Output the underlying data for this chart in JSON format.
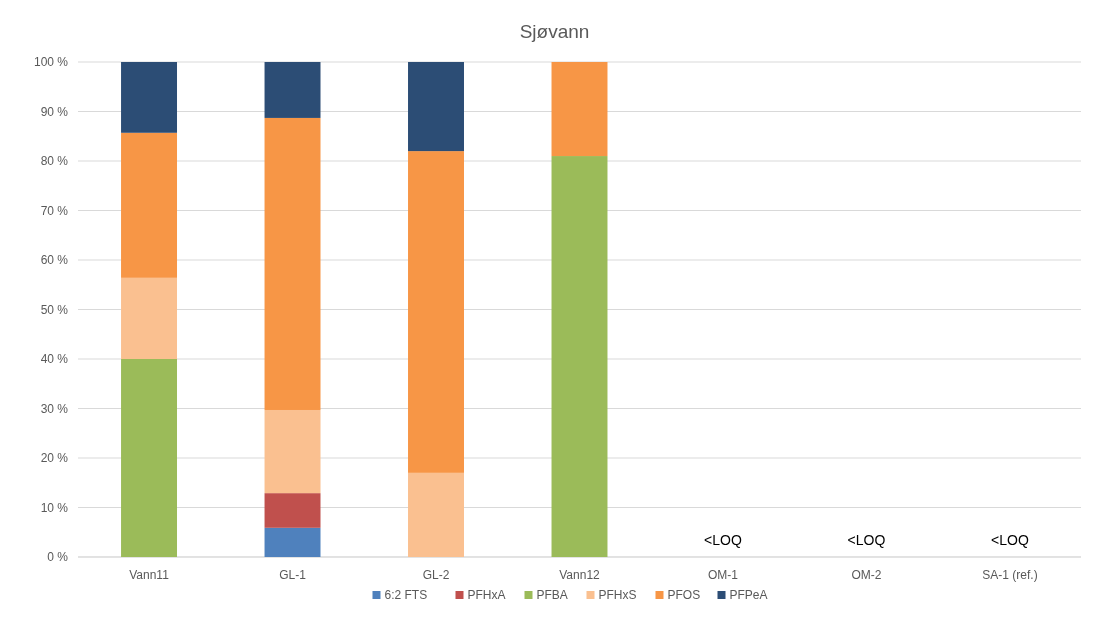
{
  "chart_data": {
    "type": "bar",
    "title": "Sjøvann",
    "stacked": true,
    "categories": [
      "Vann11",
      "GL-1",
      "GL-2",
      "Vann12",
      "OM-1",
      "OM-2",
      "SA-1 (ref.)"
    ],
    "series": [
      {
        "name": "6:2 FTS",
        "color": "#4f81bd",
        "values": [
          null,
          5.9,
          null,
          null,
          null,
          null,
          null
        ]
      },
      {
        "name": "PFHxA",
        "color": "#c0504d",
        "values": [
          null,
          7,
          null,
          null,
          null,
          null,
          null
        ]
      },
      {
        "name": "PFBA",
        "color": "#9bbb59",
        "values": [
          40,
          null,
          null,
          81,
          null,
          null,
          null
        ]
      },
      {
        "name": "PFHxS",
        "color": "#fac090",
        "values": [
          16.4,
          16.8,
          17,
          null,
          null,
          null,
          null
        ]
      },
      {
        "name": "PFOS",
        "color": "#f79646",
        "values": [
          29.3,
          59,
          65,
          19,
          null,
          null,
          null
        ]
      },
      {
        "name": "PFPeA",
        "color": "#2c4d75",
        "values": [
          14.3,
          11.3,
          18,
          null,
          null,
          null,
          null
        ]
      }
    ],
    "ylim": [
      0,
      100
    ],
    "yticks": [
      {
        "value": 0,
        "label": "0 %"
      },
      {
        "value": 10,
        "label": "10 %"
      },
      {
        "value": 20,
        "label": "20 %"
      },
      {
        "value": 30,
        "label": "30 %"
      },
      {
        "value": 40,
        "label": "40 %"
      },
      {
        "value": 50,
        "label": "50 %"
      },
      {
        "value": 60,
        "label": "60 %"
      },
      {
        "value": 70,
        "label": "70 %"
      },
      {
        "value": 80,
        "label": "80 %"
      },
      {
        "value": 90,
        "label": "90 %"
      },
      {
        "value": 100,
        "label": "100 %"
      }
    ],
    "grid": "y",
    "legend": "bottom",
    "annotations": [
      "<LOQ",
      "<LOQ",
      "<LOQ"
    ]
  }
}
